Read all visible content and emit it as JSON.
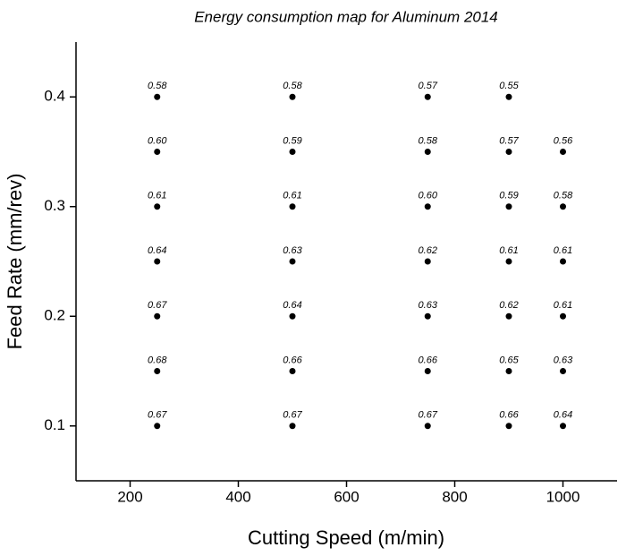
{
  "chart_data": {
    "type": "scatter",
    "title": "Energy consumption map for Aluminum 2014",
    "x_label": "Cutting Speed (m/min)",
    "y_label": "Feed Rate (mm/rev)",
    "xlim": [
      100,
      1100
    ],
    "ylim": [
      0.05,
      0.45
    ],
    "xticks": [
      200,
      400,
      600,
      800,
      1000
    ],
    "yticks": [
      0.1,
      0.2,
      0.3,
      0.4
    ],
    "color": "#000000",
    "series": [
      {
        "x": [
          250,
          500,
          750,
          900,
          250,
          500,
          750,
          900,
          1000,
          250,
          500,
          750,
          900,
          1000,
          250,
          500,
          750,
          900,
          1000,
          250,
          500,
          750,
          900,
          1000,
          250,
          500,
          750,
          900,
          1000,
          250,
          500,
          750,
          900,
          1000
        ],
        "y": [
          0.4,
          0.4,
          0.4,
          0.4,
          0.35,
          0.35,
          0.35,
          0.35,
          0.35,
          0.3,
          0.3,
          0.3,
          0.3,
          0.3,
          0.25,
          0.25,
          0.25,
          0.25,
          0.25,
          0.2,
          0.2,
          0.2,
          0.2,
          0.2,
          0.15,
          0.15,
          0.15,
          0.15,
          0.15,
          0.1,
          0.1,
          0.1,
          0.1,
          0.1
        ],
        "values": [
          0.58,
          0.58,
          0.57,
          0.55,
          0.6,
          0.59,
          0.58,
          0.57,
          0.56,
          0.61,
          0.61,
          0.6,
          0.59,
          0.58,
          0.64,
          0.63,
          0.62,
          0.61,
          0.61,
          0.67,
          0.64,
          0.63,
          0.62,
          0.61,
          0.68,
          0.66,
          0.66,
          0.65,
          0.63,
          0.67,
          0.67,
          0.67,
          0.66,
          0.64
        ],
        "value_labels": [
          "0.58",
          "0.58",
          "0.57",
          "0.55",
          "0.60",
          "0.59",
          "0.58",
          "0.57",
          "0.56",
          "0.61",
          "0.61",
          "0.60",
          "0.59",
          "0.58",
          "0.64",
          "0.63",
          "0.62",
          "0.61",
          "0.61",
          "0.67",
          "0.64",
          "0.63",
          "0.62",
          "0.61",
          "0.68",
          "0.66",
          "0.66",
          "0.65",
          "0.63",
          "0.67",
          "0.67",
          "0.67",
          "0.66",
          "0.64"
        ]
      }
    ]
  }
}
